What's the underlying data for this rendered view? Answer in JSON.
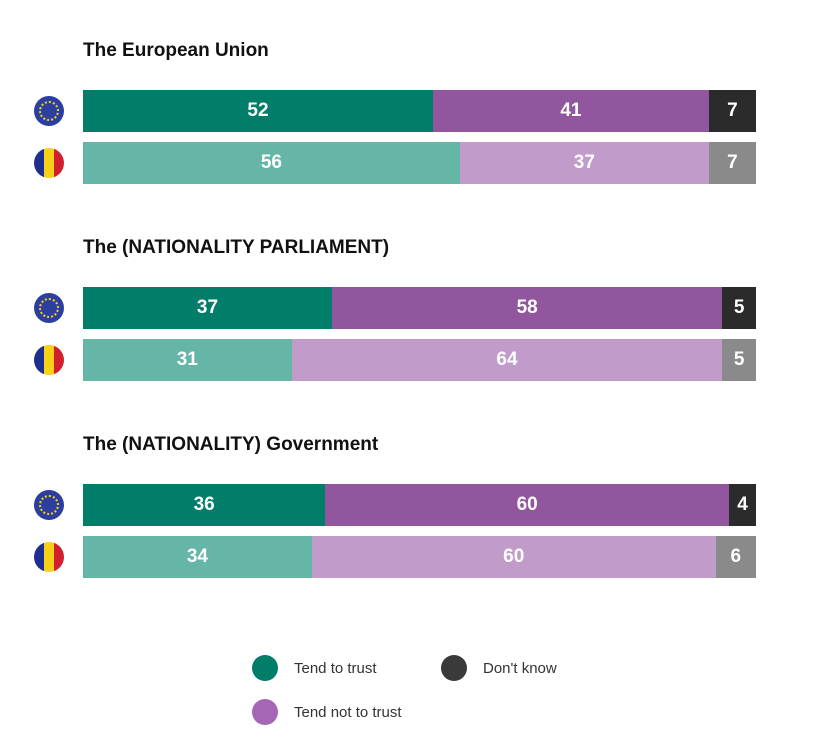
{
  "colors": {
    "eu_trust": "#007e6a",
    "eu_not_trust": "#91569d",
    "eu_dont_know": "#2b2b2b",
    "ro_trust": "#66b6a7",
    "ro_not_trust": "#c19bc9",
    "ro_dont_know": "#8a8a8a",
    "flag_eu": "#2c3f9e",
    "flag_eu_stars": "#f2d21b",
    "flag_ro_blue": "#1d2f8f",
    "flag_ro_yellow": "#f7d117",
    "flag_ro_red": "#d21f2d"
  },
  "legend": [
    {
      "label": "Tend to trust",
      "color": "#007e6a",
      "icon": "trust-dot-icon"
    },
    {
      "label": "Don't know",
      "color": "#3a3a3a",
      "icon": "dont-know-dot-icon"
    },
    {
      "label": "Tend not to trust",
      "color": "#a566b5",
      "icon": "not-trust-dot-icon"
    }
  ],
  "chart_data": {
    "type": "bar",
    "orientation": "horizontal",
    "stacked": true,
    "normalized": true,
    "series_names": [
      "Tend to trust",
      "Tend not to trust",
      "Don't know"
    ],
    "groups": [
      {
        "title": "The European Union",
        "rows": [
          {
            "region": "EU",
            "icon": "eu-flag-icon",
            "values": [
              52,
              41,
              7
            ]
          },
          {
            "region": "Romania",
            "icon": "romania-flag-icon",
            "values": [
              56,
              37,
              7
            ]
          }
        ]
      },
      {
        "title": "The (NATIONALITY PARLIAMENT)",
        "rows": [
          {
            "region": "EU",
            "icon": "eu-flag-icon",
            "values": [
              37,
              58,
              5
            ]
          },
          {
            "region": "Romania",
            "icon": "romania-flag-icon",
            "values": [
              31,
              64,
              5
            ]
          }
        ]
      },
      {
        "title": "The (NATIONALITY) Government",
        "rows": [
          {
            "region": "EU",
            "icon": "eu-flag-icon",
            "values": [
              36,
              60,
              4
            ]
          },
          {
            "region": "Romania",
            "icon": "romania-flag-icon",
            "values": [
              34,
              60,
              6
            ]
          }
        ]
      }
    ]
  }
}
